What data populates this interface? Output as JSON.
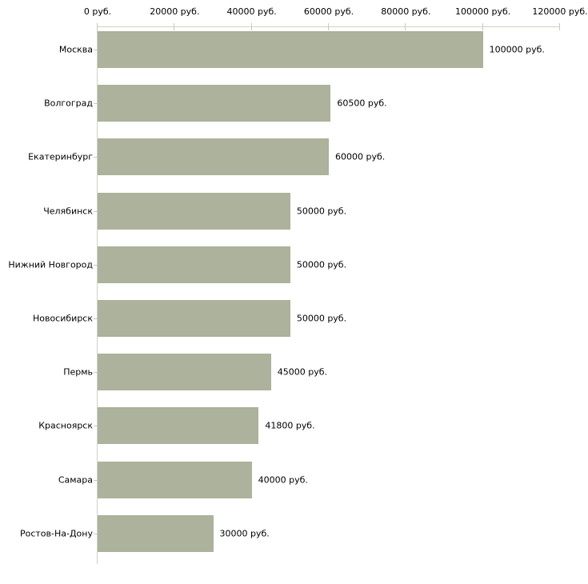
{
  "chart_data": {
    "type": "bar",
    "orientation": "horizontal",
    "title": "",
    "categories": [
      "Москва",
      "Волгоград",
      "Екатеринбург",
      "Челябинск",
      "Нижний Новгород",
      "Новосибирск",
      "Пермь",
      "Красноярск",
      "Самара",
      "Ростов-На-Дону"
    ],
    "values": [
      100000,
      60500,
      60000,
      50000,
      50000,
      50000,
      45000,
      41800,
      40000,
      30000
    ],
    "value_labels": [
      "100000 руб.",
      "60500 руб.",
      "60000 руб.",
      "50000 руб.",
      "50000 руб.",
      "50000 руб.",
      "45000 руб.",
      "41800 руб.",
      "40000 руб.",
      "30000 руб."
    ],
    "unit": "руб.",
    "xlim": [
      0,
      120000
    ],
    "x_ticks": [
      0,
      20000,
      40000,
      60000,
      80000,
      100000,
      120000
    ],
    "x_tick_labels": [
      "0 руб.",
      "20000 руб.",
      "40000 руб.",
      "60000 руб.",
      "80000 руб.",
      "100000 руб.",
      "120000 руб."
    ],
    "xlabel": "",
    "ylabel": "",
    "grid": false,
    "legend_position": "none",
    "bar_color": "#acb29b",
    "axis_color": "#d0d0c4",
    "tick_color": "#c9c9bc",
    "text_color": "#000000",
    "background_color": "#ffffff"
  }
}
